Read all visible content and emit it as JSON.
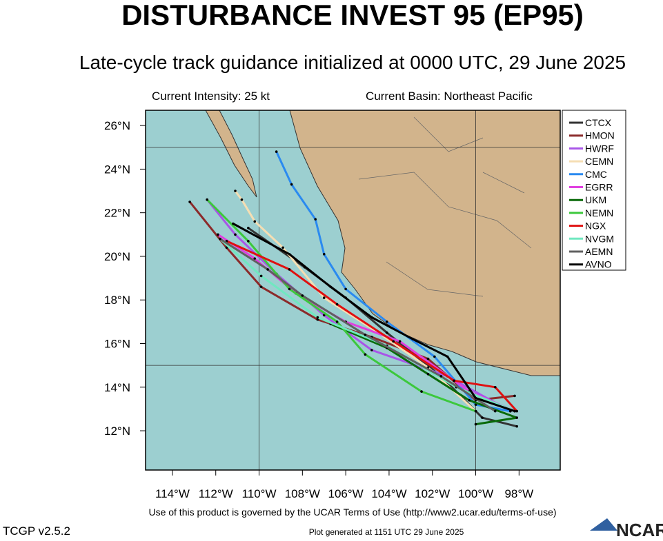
{
  "header": {
    "title": "DISTURBANCE INVEST 95 (EP95)",
    "subtitle": "Late-cycle track guidance initialized at 0000 UTC, 29 June 2025",
    "intensity": "Current Intensity: 25 kt",
    "basin": "Current Basin: Northeast Pacific"
  },
  "map": {
    "lonlim": [
      -115.24,
      -96.1
    ],
    "latlim": [
      10.2,
      26.7
    ],
    "lonticks": [
      {
        "value": -114,
        "label": "114°W"
      },
      {
        "value": -112,
        "label": "112°W"
      },
      {
        "value": -110,
        "label": "110°W"
      },
      {
        "value": -108,
        "label": "108°W"
      },
      {
        "value": -106,
        "label": "106°W"
      },
      {
        "value": -104,
        "label": "104°W"
      },
      {
        "value": -102,
        "label": "102°W"
      },
      {
        "value": -100,
        "label": "100°W"
      },
      {
        "value": -98,
        "label": "98°W"
      }
    ],
    "latticks": [
      {
        "value": 12,
        "label": "12°N"
      },
      {
        "value": 14,
        "label": "14°N"
      },
      {
        "value": 16,
        "label": "16°N"
      },
      {
        "value": 18,
        "label": "18°N"
      },
      {
        "value": 20,
        "label": "20°N"
      },
      {
        "value": 22,
        "label": "22°N"
      },
      {
        "value": 24,
        "label": "24°N"
      },
      {
        "value": 26,
        "label": "26°N"
      }
    ],
    "grid_lons": [
      -110,
      -100
    ],
    "grid_lats": [
      15,
      25
    ],
    "tracks": [
      {
        "name": "CTCX",
        "color": "#333333",
        "points": [
          [
            -98.1,
            12.2
          ],
          [
            -99.7,
            12.6
          ],
          [
            -101.6,
            14.5
          ],
          [
            -104.1,
            16.5
          ],
          [
            -106.0,
            18.1
          ],
          [
            -107.9,
            19.5
          ],
          [
            -110.5,
            21.3
          ]
        ]
      },
      {
        "name": "HMON",
        "color": "#8b2a2a",
        "points": [
          [
            -98.2,
            13.6
          ],
          [
            -100.0,
            13.4
          ],
          [
            -102.2,
            15.3
          ],
          [
            -104.8,
            16.3
          ],
          [
            -107.3,
            17.1
          ],
          [
            -109.9,
            18.6
          ],
          [
            -111.5,
            20.4
          ],
          [
            -113.2,
            22.5
          ]
        ]
      },
      {
        "name": "HWRF",
        "color": "#a855e8",
        "points": [
          [
            -98.4,
            12.9
          ],
          [
            -101.3,
            14.5
          ],
          [
            -104.8,
            15.7
          ],
          [
            -107.0,
            17.3
          ],
          [
            -109.2,
            19.2
          ],
          [
            -111.1,
            21.0
          ],
          [
            -112.4,
            22.6
          ]
        ]
      },
      {
        "name": "CEMN",
        "color": "#f5deb3",
        "points": [
          [
            -100.0,
            12.9
          ],
          [
            -102.2,
            14.9
          ],
          [
            -104.5,
            16.5
          ],
          [
            -107.0,
            18.1
          ],
          [
            -108.9,
            20.4
          ],
          [
            -110.2,
            21.6
          ],
          [
            -110.8,
            22.6
          ],
          [
            -111.1,
            23.0
          ]
        ]
      },
      {
        "name": "CMC",
        "color": "#2a8af0",
        "points": [
          [
            -98.4,
            12.9
          ],
          [
            -100.0,
            13.2
          ],
          [
            -101.9,
            15.4
          ],
          [
            -104.1,
            17.0
          ],
          [
            -106.0,
            18.5
          ],
          [
            -107.0,
            20.1
          ],
          [
            -107.4,
            21.7
          ],
          [
            -108.5,
            23.3
          ],
          [
            -109.2,
            24.8
          ]
        ]
      },
      {
        "name": "EGRR",
        "color": "#e040e0",
        "points": [
          [
            -98.2,
            12.9
          ],
          [
            -100.3,
            13.8
          ],
          [
            -103.5,
            16.1
          ],
          [
            -106.0,
            17.0
          ],
          [
            -108.3,
            18.3
          ],
          [
            -110.2,
            19.9
          ],
          [
            -111.9,
            21.0
          ]
        ]
      },
      {
        "name": "UKM",
        "color": "#0a6a0a",
        "points": [
          [
            -100.0,
            12.3
          ],
          [
            -98.1,
            12.6
          ],
          [
            -100.3,
            13.4
          ],
          [
            -102.2,
            14.6
          ],
          [
            -104.1,
            15.8
          ],
          [
            -106.7,
            16.9
          ]
        ]
      },
      {
        "name": "NEMN",
        "color": "#3cc83c",
        "points": [
          [
            -100.0,
            12.9
          ],
          [
            -102.5,
            13.8
          ],
          [
            -105.1,
            15.5
          ],
          [
            -106.4,
            17.0
          ],
          [
            -108.6,
            18.5
          ],
          [
            -110.5,
            20.7
          ],
          [
            -112.4,
            22.6
          ]
        ]
      },
      {
        "name": "NGX",
        "color": "#e01010",
        "points": [
          [
            -98.1,
            12.9
          ],
          [
            -99.1,
            14.0
          ],
          [
            -101.0,
            14.3
          ],
          [
            -103.8,
            16.1
          ],
          [
            -106.4,
            17.8
          ],
          [
            -108.6,
            19.4
          ],
          [
            -111.5,
            20.7
          ]
        ]
      },
      {
        "name": "NVGM",
        "color": "#70e8c0",
        "points": [
          [
            -98.2,
            12.9
          ],
          [
            -100.9,
            14.0
          ],
          [
            -104.1,
            15.9
          ],
          [
            -107.3,
            17.2
          ],
          [
            -109.9,
            19.1
          ],
          [
            -111.8,
            20.8
          ]
        ]
      },
      {
        "name": "AEMN",
        "color": "#606060",
        "points": [
          [
            -99.1,
            12.9
          ],
          [
            -101.6,
            14.5
          ],
          [
            -105.1,
            16.4
          ],
          [
            -108.0,
            18.2
          ],
          [
            -109.6,
            19.4
          ],
          [
            -111.8,
            20.8
          ]
        ]
      },
      {
        "name": "AVNO",
        "color": "#000000",
        "points": [
          [
            -98.2,
            12.9
          ],
          [
            -100.0,
            13.5
          ],
          [
            -101.3,
            15.4
          ],
          [
            -102.9,
            16.2
          ],
          [
            -104.8,
            17.2
          ],
          [
            -106.7,
            18.6
          ],
          [
            -108.6,
            20.1
          ],
          [
            -111.2,
            21.5
          ]
        ]
      }
    ]
  },
  "footer": {
    "terms": "Use of this product is governed by the UCAR Terms of Use (http://www2.ucar.edu/terms-of-use)",
    "version": "TCGP v2.5.2",
    "generated": "Plot generated at 1151 UTC   29 June 2025",
    "logo": "NCAR"
  }
}
